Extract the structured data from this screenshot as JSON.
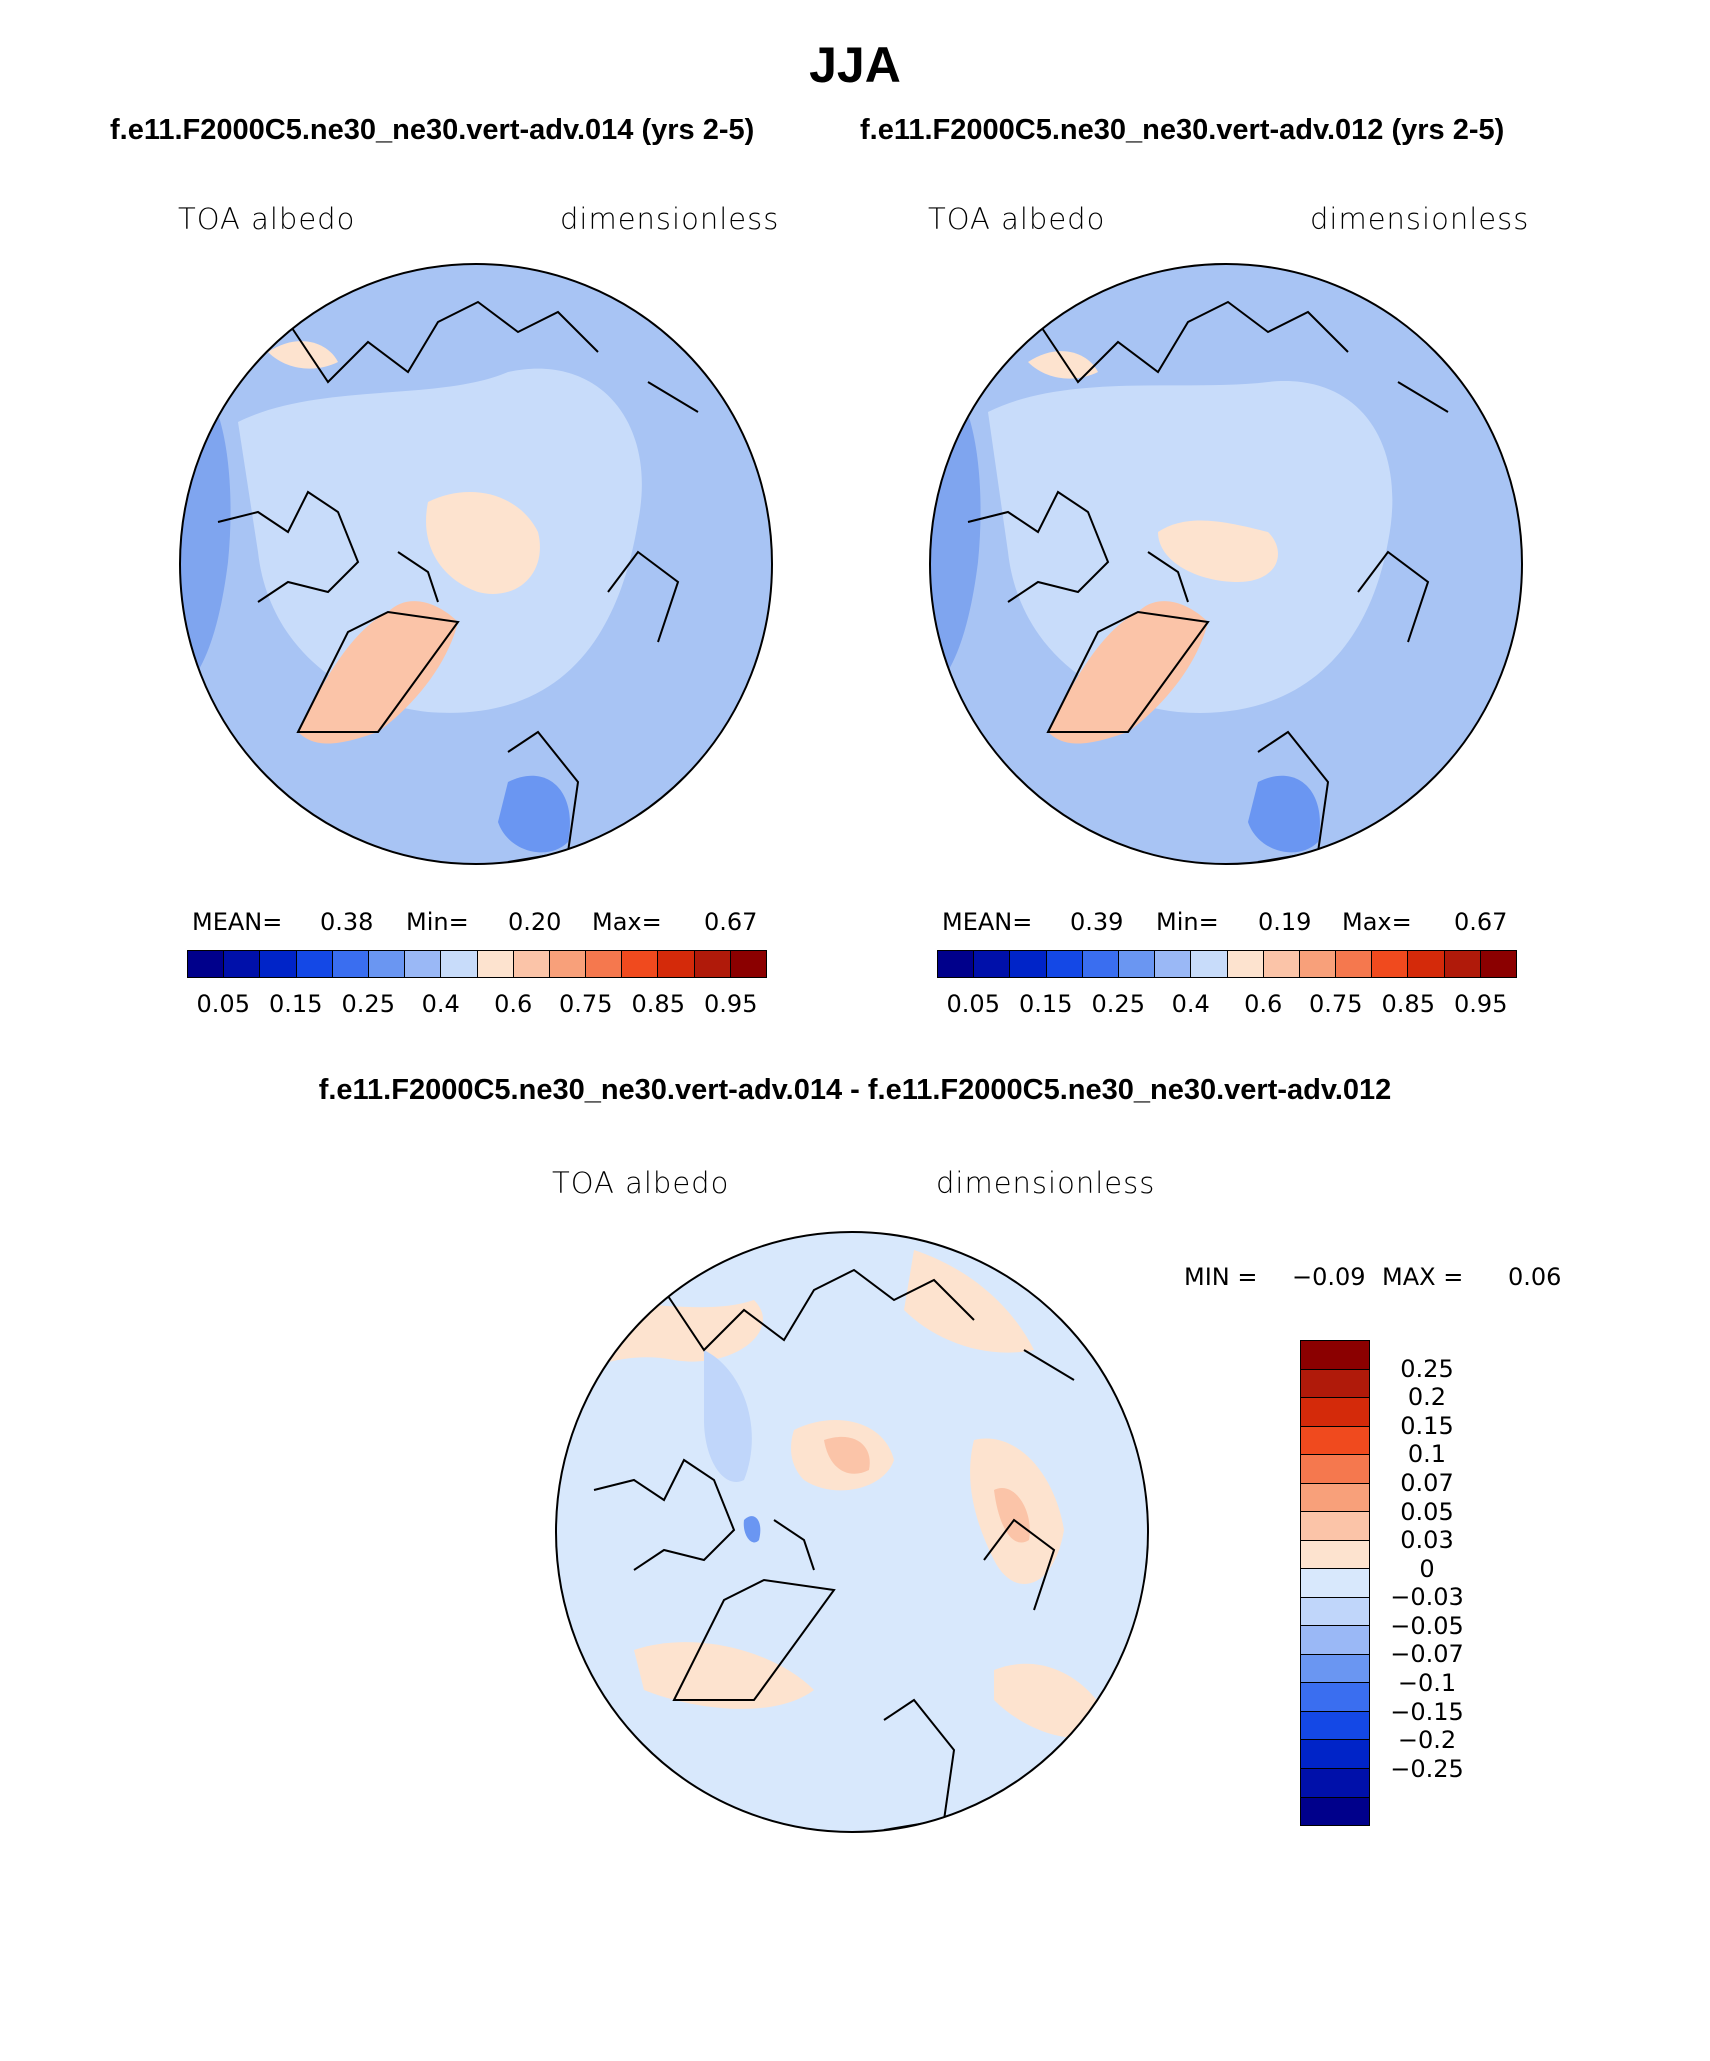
{
  "title": "JJA",
  "panels": [
    {
      "case": "f.e11.F2000C5.ne30_ne30.vert-adv.014 (yrs 2-5)",
      "variable": "TOA albedo",
      "units": "dimensionless",
      "mean_label": "MEAN=",
      "mean": "0.38",
      "min_label": "Min=",
      "min": "0.20",
      "max_label": "Max=",
      "max": "0.67"
    },
    {
      "case": "f.e11.F2000C5.ne30_ne30.vert-adv.012 (yrs 2-5)",
      "variable": "TOA albedo",
      "units": "dimensionless",
      "mean_label": "MEAN=",
      "mean": "0.39",
      "min_label": "Min=",
      "min": "0.19",
      "max_label": "Max=",
      "max": "0.67"
    }
  ],
  "abs_colorbar": {
    "colors": [
      "#00008b",
      "#0010aa",
      "#0024c8",
      "#1448e6",
      "#3a6ef0",
      "#6a96f2",
      "#9ab8f6",
      "#c8dcfa",
      "#fde3cf",
      "#fbc4a8",
      "#f8a07a",
      "#f5784e",
      "#f04a1e",
      "#d42a0a",
      "#b01a0a",
      "#8b0000"
    ],
    "labels": [
      "0.05",
      "0.15",
      "0.25",
      "0.4",
      "0.6",
      "0.75",
      "0.85",
      "0.95"
    ]
  },
  "diff": {
    "title": "f.e11.F2000C5.ne30_ne30.vert-adv.014 - f.e11.F2000C5.ne30_ne30.vert-adv.012",
    "variable": "TOA albedo",
    "units": "dimensionless",
    "min_label": "MIN =",
    "min": "−0.09",
    "max_label": "MAX =",
    "max": "0.06",
    "colorbar": {
      "colors": [
        "#8b0000",
        "#b01a0a",
        "#d42a0a",
        "#f04a1e",
        "#f5784e",
        "#f8a07a",
        "#fbc4a8",
        "#fde3cf",
        "#d8e8fc",
        "#c0d6fa",
        "#9ab8f6",
        "#6a96f2",
        "#3a6ef0",
        "#1448e6",
        "#0024c8",
        "#0010aa",
        "#00008b"
      ],
      "labels": [
        "0.25",
        "0.2",
        "0.15",
        "0.1",
        "0.07",
        "0.05",
        "0.03",
        "0",
        "−0.03",
        "−0.05",
        "−0.07",
        "−0.1",
        "−0.15",
        "−0.2",
        "−0.25"
      ]
    }
  },
  "colors": {
    "base_low": "#a8c4f4",
    "mid_light": "#c8dcfa",
    "ocean_dark": "#7fa5ef",
    "warm_light": "#fde3cf",
    "warm_mid": "#fbc4a8",
    "diff_base": "#d8e8fc"
  }
}
